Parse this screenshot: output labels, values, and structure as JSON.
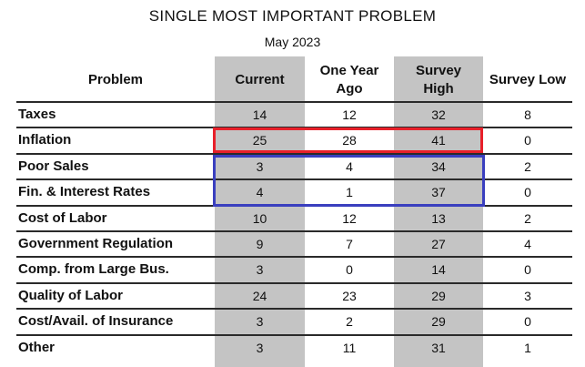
{
  "chart_data": {
    "type": "table",
    "title": "SINGLE MOST IMPORTANT PROBLEM",
    "subtitle": "May 2023",
    "columns": [
      "Problem",
      "Current",
      "One Year Ago",
      "Survey High",
      "Survey Low"
    ],
    "rows": [
      {
        "problem": "Taxes",
        "current": 14,
        "year_ago": 12,
        "survey_high": 32,
        "survey_low": 8
      },
      {
        "problem": "Inflation",
        "current": 25,
        "year_ago": 28,
        "survey_high": 41,
        "survey_low": 0
      },
      {
        "problem": "Poor Sales",
        "current": 3,
        "year_ago": 4,
        "survey_high": 34,
        "survey_low": 2
      },
      {
        "problem": "Fin. & Interest Rates",
        "current": 4,
        "year_ago": 1,
        "survey_high": 37,
        "survey_low": 0
      },
      {
        "problem": "Cost of Labor",
        "current": 10,
        "year_ago": 12,
        "survey_high": 13,
        "survey_low": 2
      },
      {
        "problem": "Government Regulation",
        "current": 9,
        "year_ago": 7,
        "survey_high": 27,
        "survey_low": 4
      },
      {
        "problem": "Comp. from Large Bus.",
        "current": 3,
        "year_ago": 0,
        "survey_high": 14,
        "survey_low": 0
      },
      {
        "problem": "Quality of Labor",
        "current": 24,
        "year_ago": 23,
        "survey_high": 29,
        "survey_low": 3
      },
      {
        "problem": "Cost/Avail. of Insurance",
        "current": 3,
        "year_ago": 2,
        "survey_high": 29,
        "survey_low": 0
      },
      {
        "problem": "Other",
        "current": 3,
        "year_ago": 11,
        "survey_high": 31,
        "survey_low": 1
      }
    ],
    "shaded_columns": [
      "Current",
      "Survey High"
    ],
    "shade_color": "#c4c4c4",
    "highlights": [
      {
        "rows": [
          "Inflation"
        ],
        "color": "#e8202a"
      },
      {
        "rows": [
          "Poor Sales",
          "Fin. & Interest Rates"
        ],
        "color": "#3a3fbf"
      }
    ]
  }
}
